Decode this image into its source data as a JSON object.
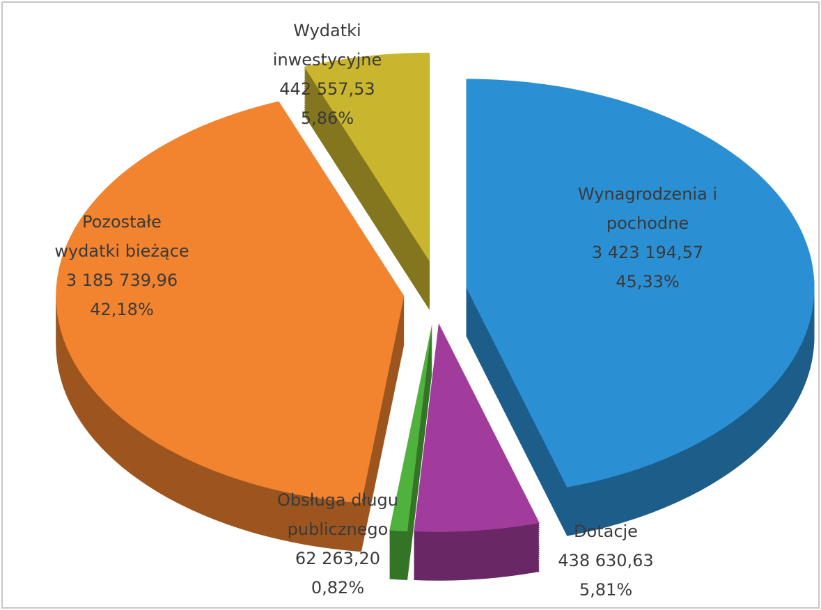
{
  "chart_data": {
    "type": "pie",
    "categories": [
      [
        "Wynagrodzenia i",
        "pochodne"
      ],
      [
        "Dotacje"
      ],
      [
        "Obsługa długu",
        "publicznego"
      ],
      [
        "Pozostałe",
        "wydatki bieżące"
      ],
      [
        "Wydatki",
        "inwestycyjne"
      ]
    ],
    "values": [
      3423194.57,
      438630.63,
      62263.2,
      3185739.96,
      442557.53
    ],
    "value_labels": [
      "3 423 194,57",
      "438 630,63",
      "62 263,20",
      "3 185 739,96",
      "442 557,53"
    ],
    "percentages": [
      45.33,
      5.81,
      0.82,
      42.18,
      5.86
    ],
    "percentage_labels": [
      "45,33%",
      "5,81%",
      "0,82%",
      "42,18%",
      "5,86%"
    ],
    "colors": [
      "#2b8fd3",
      "#a13c9c",
      "#4fb23c",
      "#f2832f",
      "#c9b52e"
    ]
  }
}
